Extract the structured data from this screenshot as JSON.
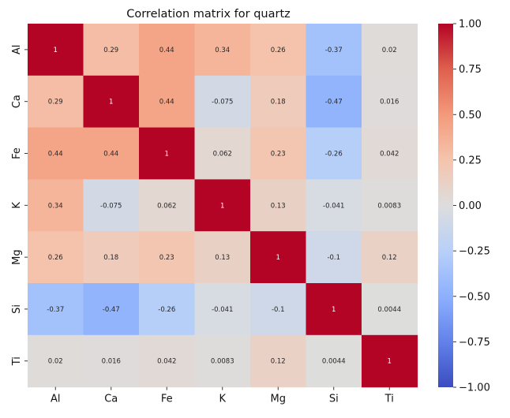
{
  "chart_data": {
    "type": "heatmap",
    "title": "Correlation matrix for quartz",
    "xlabel": "",
    "ylabel": "",
    "x_categories": [
      "Al",
      "Ca",
      "Fe",
      "K",
      "Mg",
      "Si",
      "Ti"
    ],
    "y_categories": [
      "Al",
      "Ca",
      "Fe",
      "K",
      "Mg",
      "Si",
      "Ti"
    ],
    "values": [
      [
        1,
        0.29,
        0.44,
        0.34,
        0.26,
        -0.37,
        0.02
      ],
      [
        0.29,
        1,
        0.44,
        -0.075,
        0.18,
        -0.47,
        0.016
      ],
      [
        0.44,
        0.44,
        1,
        0.062,
        0.23,
        -0.26,
        0.042
      ],
      [
        0.34,
        -0.075,
        0.062,
        1,
        0.13,
        -0.041,
        0.0083
      ],
      [
        0.26,
        0.18,
        0.23,
        0.13,
        1,
        -0.1,
        0.12
      ],
      [
        -0.37,
        -0.47,
        -0.26,
        -0.041,
        -0.1,
        1,
        0.0044
      ],
      [
        0.02,
        0.016,
        0.042,
        0.0083,
        0.12,
        0.0044,
        1
      ]
    ],
    "cell_labels": [
      [
        "1",
        "0.29",
        "0.44",
        "0.34",
        "0.26",
        "-0.37",
        "0.02"
      ],
      [
        "0.29",
        "1",
        "0.44",
        "-0.075",
        "0.18",
        "-0.47",
        "0.016"
      ],
      [
        "0.44",
        "0.44",
        "1",
        "0.062",
        "0.23",
        "-0.26",
        "0.042"
      ],
      [
        "0.34",
        "-0.075",
        "0.062",
        "1",
        "0.13",
        "-0.041",
        "0.0083"
      ],
      [
        "0.26",
        "0.18",
        "0.23",
        "0.13",
        "1",
        "-0.1",
        "0.12"
      ],
      [
        "-0.37",
        "-0.47",
        "-0.26",
        "-0.041",
        "-0.1",
        "1",
        "0.0044"
      ],
      [
        "0.02",
        "0.016",
        "0.042",
        "0.0083",
        "0.12",
        "0.0044",
        "1"
      ]
    ],
    "colorbar": {
      "colormap": "coolwarm",
      "vmin": -1,
      "vmax": 1,
      "ticks": [
        1,
        0.75,
        0.5,
        0.25,
        0,
        -0.25,
        -0.5,
        -0.75,
        -1
      ],
      "tick_labels": [
        "1.00",
        "0.75",
        "0.50",
        "0.25",
        "0.00",
        "−0.25",
        "−0.50",
        "−0.75",
        "−1.00"
      ]
    },
    "grid": false,
    "legend": "colorbar-right"
  }
}
